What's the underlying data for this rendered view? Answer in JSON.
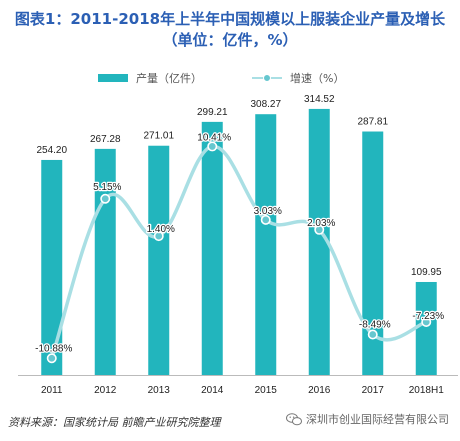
{
  "colors": {
    "bar": "#22b5bd",
    "line": "#a9dfe4",
    "marker": "#66c7cf",
    "title": "#2b5fb4"
  },
  "title_line1": "图表1：2011-2018年上半年中国规模以上服装企业产量及增长",
  "title_line2": "（单位：亿件，%）",
  "source": "资料来源：国家统计局 前瞻产业研究院整理",
  "brand": "深圳市创业国际经营有限公司",
  "brand_icon": "wechat-icon",
  "chart_data": {
    "type": "bar",
    "categories": [
      "2011",
      "2012",
      "2013",
      "2014",
      "2015",
      "2016",
      "2017",
      "2018H1"
    ],
    "series": [
      {
        "name": "产量（亿件）",
        "type": "bar",
        "values": [
          254.2,
          267.28,
          271.01,
          299.21,
          308.27,
          314.52,
          287.81,
          109.95
        ]
      },
      {
        "name": "增速（%）",
        "type": "line",
        "values": [
          -10.88,
          5.15,
          1.4,
          10.41,
          3.03,
          2.03,
          -8.49,
          -7.23
        ]
      }
    ],
    "bar_labels": [
      "254.20",
      "267.28",
      "271.01",
      "299.21",
      "308.27",
      "314.52",
      "287.81",
      "109.95"
    ],
    "line_labels": [
      "-10.88%",
      "5.15%",
      "1.40%",
      "10.41%",
      "3.03%",
      "2.03%",
      "-8.49%",
      "-7.23%"
    ],
    "ylim_bar": [
      0,
      350
    ],
    "ylim_line": [
      -13,
      12
    ],
    "legend": "top",
    "grid": false
  }
}
